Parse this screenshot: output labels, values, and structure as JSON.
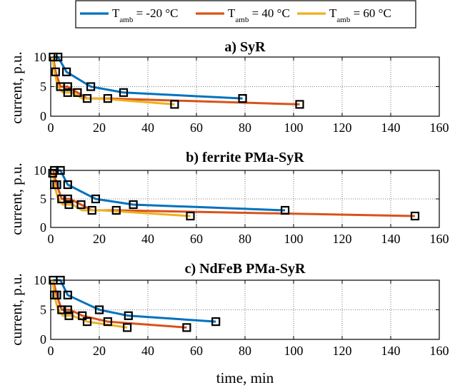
{
  "legend": {
    "entries": [
      {
        "prefix": "T",
        "sub": "amb",
        "suffix": " = -20 °C",
        "color": "#0072BD"
      },
      {
        "prefix": "T",
        "sub": "amb",
        "suffix": " = 40 °C",
        "color": "#D95319"
      },
      {
        "prefix": "T",
        "sub": "amb",
        "suffix": " = 60 °C",
        "color": "#EDB120"
      }
    ]
  },
  "xlabel": "time, min",
  "chart_data": [
    {
      "type": "line",
      "title": "a) SyR",
      "ylabel": "current, p.u.",
      "xlim": [
        0,
        160
      ],
      "ylim": [
        0,
        10
      ],
      "xticks": [
        0,
        20,
        40,
        60,
        80,
        100,
        120,
        140,
        160
      ],
      "yticks": [
        0,
        5,
        10
      ],
      "grid": "dotted",
      "series": [
        {
          "name": "T_amb = -20 °C",
          "color": "#0072BD",
          "x": [
            1,
            3,
            6.5,
            16.5,
            30,
            79
          ],
          "y": [
            10,
            10,
            7.5,
            5,
            4,
            3
          ]
        },
        {
          "name": "T_amb = 40 °C",
          "color": "#D95319",
          "x": [
            1,
            2,
            4,
            7,
            11,
            15,
            23.5,
            102.5
          ],
          "y": [
            10,
            7.5,
            5,
            5,
            4,
            3,
            3,
            2
          ]
        },
        {
          "name": "T_amb = 60 °C",
          "color": "#EDB120",
          "x": [
            0.8,
            1.5,
            3,
            5,
            9,
            13,
            20,
            51
          ],
          "y": [
            10,
            7.5,
            5,
            4,
            4,
            3,
            3,
            2
          ]
        }
      ],
      "markers": [
        [
          1,
          10
        ],
        [
          3,
          10
        ],
        [
          2,
          7.5
        ],
        [
          6.5,
          7.5
        ],
        [
          4,
          5
        ],
        [
          7,
          5
        ],
        [
          16.5,
          5
        ],
        [
          7,
          4
        ],
        [
          11,
          4
        ],
        [
          30,
          4
        ],
        [
          15,
          3
        ],
        [
          23.5,
          3
        ],
        [
          79,
          3
        ],
        [
          51,
          2
        ],
        [
          102.5,
          2
        ]
      ]
    },
    {
      "type": "line",
      "title": "b) ferrite PMa-SyR",
      "ylabel": "current, p.u.",
      "xlim": [
        0,
        160
      ],
      "ylim": [
        0,
        10
      ],
      "xticks": [
        0,
        20,
        40,
        60,
        80,
        100,
        120,
        140,
        160
      ],
      "yticks": [
        0,
        5,
        10
      ],
      "grid": "dotted",
      "series": [
        {
          "name": "T_amb = -20 °C",
          "color": "#0072BD",
          "x": [
            1.5,
            4,
            7,
            18.5,
            34,
            96.5
          ],
          "y": [
            10,
            10,
            7.5,
            5,
            4,
            3
          ]
        },
        {
          "name": "T_amb = 40 °C",
          "color": "#D95319",
          "x": [
            1,
            2.5,
            4.5,
            8,
            12.5,
            17,
            27,
            150
          ],
          "y": [
            10,
            7.5,
            5,
            5,
            4,
            3,
            3,
            2
          ]
        },
        {
          "name": "T_amb = 60 °C",
          "color": "#EDB120",
          "x": [
            0.8,
            1.5,
            3,
            5,
            9,
            13,
            21,
            57.5
          ],
          "y": [
            9.5,
            7.5,
            5,
            4,
            4,
            3,
            3,
            2
          ]
        }
      ],
      "markers": [
        [
          0.8,
          9.5
        ],
        [
          1.5,
          10
        ],
        [
          4,
          10
        ],
        [
          1.5,
          7.5
        ],
        [
          2.5,
          7.5
        ],
        [
          7,
          7.5
        ],
        [
          4.5,
          5
        ],
        [
          7,
          5
        ],
        [
          18.5,
          5
        ],
        [
          7.5,
          4
        ],
        [
          12.5,
          4
        ],
        [
          34,
          4
        ],
        [
          17,
          3
        ],
        [
          27,
          3
        ],
        [
          96.5,
          3
        ],
        [
          57.5,
          2
        ],
        [
          150,
          2
        ]
      ]
    },
    {
      "type": "line",
      "title": "c) NdFeB PMa-SyR",
      "ylabel": "current, p.u.",
      "xlim": [
        0,
        160
      ],
      "ylim": [
        0,
        10
      ],
      "xticks": [
        0,
        20,
        40,
        60,
        80,
        100,
        120,
        140,
        160
      ],
      "yticks": [
        0,
        5,
        10
      ],
      "grid": "dotted",
      "series": [
        {
          "name": "T_amb = -20 °C",
          "color": "#0072BD",
          "x": [
            1,
            4,
            7,
            20,
            32,
            68
          ],
          "y": [
            10,
            10,
            7.5,
            5,
            4,
            3
          ]
        },
        {
          "name": "T_amb = 40 °C",
          "color": "#D95319",
          "x": [
            1,
            2.5,
            4.5,
            8,
            13,
            23.5,
            56
          ],
          "y": [
            10,
            7.5,
            5,
            5,
            4,
            3,
            2
          ]
        },
        {
          "name": "T_amb = 60 °C",
          "color": "#EDB120",
          "x": [
            0.8,
            1.5,
            3,
            5,
            9,
            15,
            31.5
          ],
          "y": [
            10,
            7.5,
            5,
            4,
            4,
            3,
            2
          ]
        }
      ],
      "markers": [
        [
          1,
          10
        ],
        [
          4,
          10
        ],
        [
          1.5,
          7.5
        ],
        [
          2.5,
          7.5
        ],
        [
          7,
          7.5
        ],
        [
          4.5,
          5
        ],
        [
          7,
          5
        ],
        [
          20,
          5
        ],
        [
          7.5,
          4
        ],
        [
          13,
          4
        ],
        [
          32,
          4
        ],
        [
          15,
          3
        ],
        [
          23.5,
          3
        ],
        [
          68,
          3
        ],
        [
          31.5,
          2
        ],
        [
          56,
          2
        ]
      ]
    }
  ]
}
